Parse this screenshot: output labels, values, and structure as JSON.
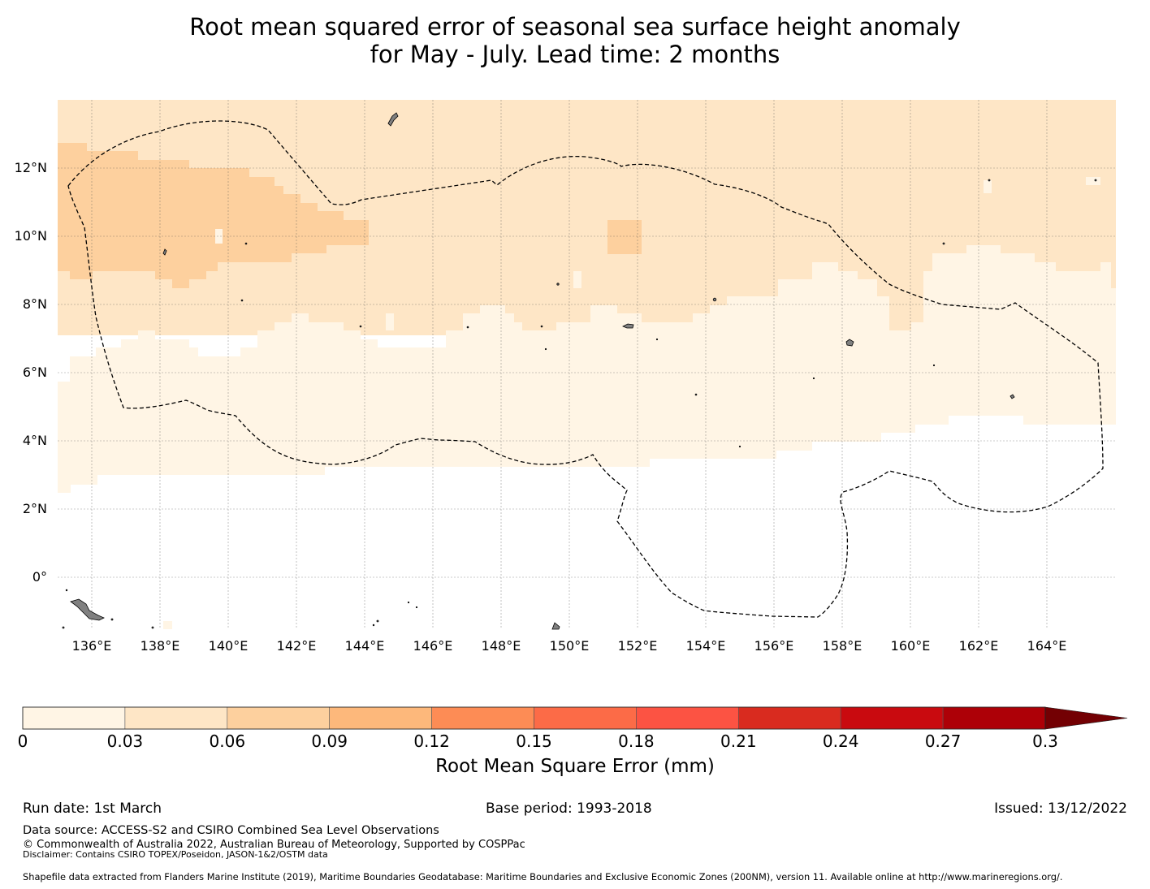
{
  "title": {
    "line1": "Root mean squared error of seasonal sea surface height anomaly",
    "line2": "for May - July. Lead time: 2 months"
  },
  "map": {
    "lon_labels": [
      "136°E",
      "138°E",
      "140°E",
      "142°E",
      "144°E",
      "146°E",
      "148°E",
      "150°E",
      "152°E",
      "154°E",
      "156°E",
      "158°E",
      "160°E",
      "162°E",
      "164°E"
    ],
    "lat_labels": [
      "12°N",
      "10°N",
      "8°N",
      "6°N",
      "4°N",
      "2°N",
      "0°"
    ],
    "colors": {
      "land": "#808080",
      "gridline": "#555555"
    }
  },
  "colorbar": {
    "label": "Root Mean Square Error (mm)",
    "ticks": [
      "0",
      "0.03",
      "0.06",
      "0.09",
      "0.12",
      "0.15",
      "0.18",
      "0.21",
      "0.24",
      "0.27",
      "0.3"
    ],
    "colors": [
      "#fff5e5",
      "#fee6c6",
      "#fdd09e",
      "#fdb87b",
      "#fd8c55",
      "#fc6b47",
      "#fc5343",
      "#d92b1f",
      "#c90a0f",
      "#ad0007",
      "#730003"
    ],
    "extend": "max"
  },
  "footer": {
    "run_date": "Run date: 1st March",
    "base_period": "Base period: 1993-2018",
    "issued": "Issued: 13/12/2022",
    "data_source": "Data source: ACCESS-S2 and CSIRO Combined Sea Level Observations",
    "copyright": "© Commonwealth of Australia 2022, Australian Bureau of Meteorology, Supported by COSPPac",
    "disclaimer": "Disclaimer: Contains CSIRO TOPEX/Poseidon, JASON-1&2/OSTM data",
    "shapefile": "Shapefile data extracted from Flanders Marine Institute (2019), Maritime Boundaries Geodatabase: Maritime Boundaries and Exclusive Economic Zones (200NM), version 11. Available online at http://www.marineregions.org/."
  }
}
